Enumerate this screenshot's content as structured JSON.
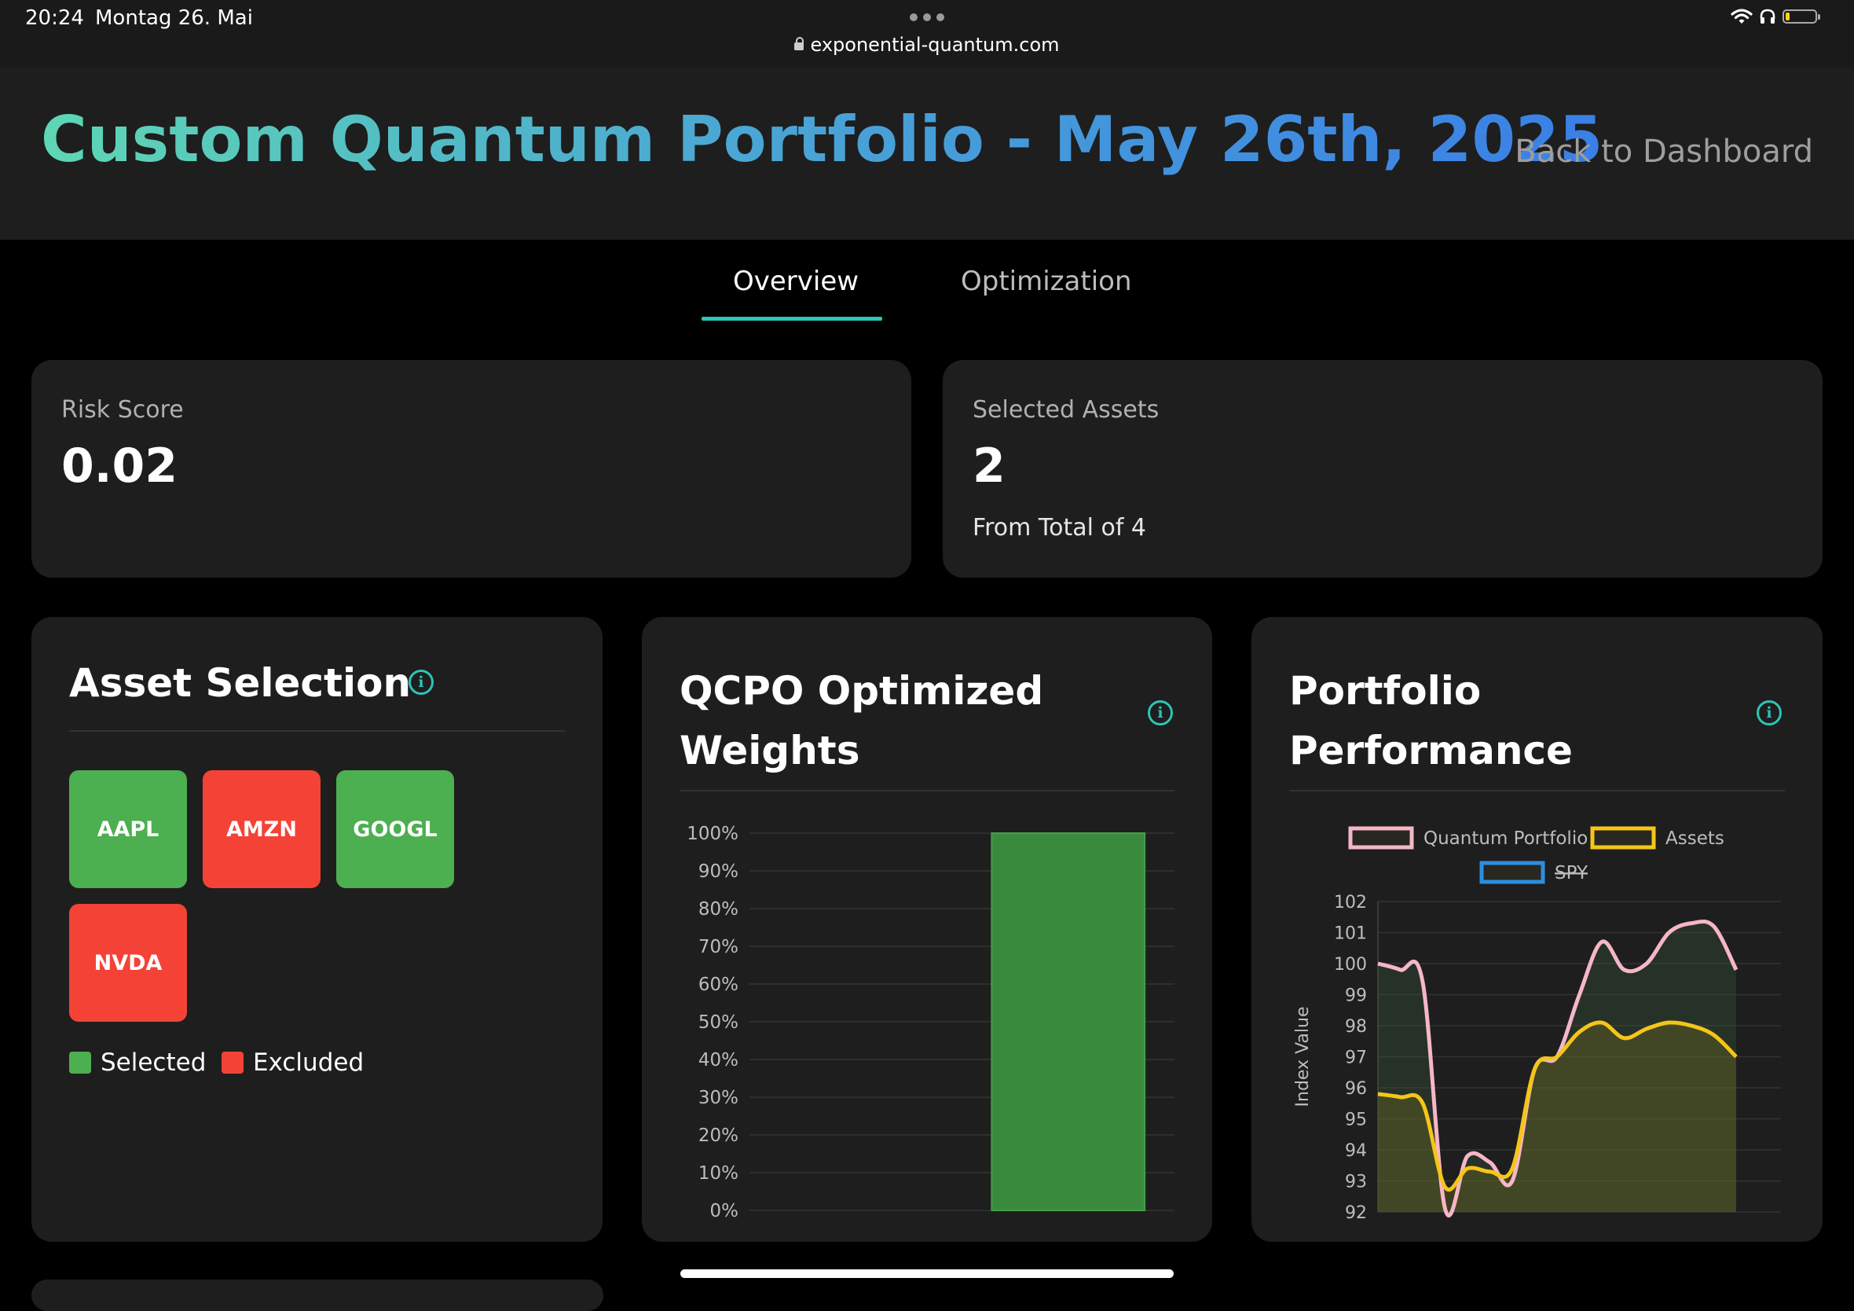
{
  "status_bar": {
    "time": "20:24",
    "date": "Montag 26. Mai",
    "url": "exponential-quantum.com"
  },
  "header": {
    "title": "Custom Quantum Portfolio - May 26th, 2025",
    "back_link": "Back to Dashboard"
  },
  "tabs": [
    {
      "label": "Overview",
      "active": true
    },
    {
      "label": "Optimization",
      "active": false
    }
  ],
  "stats": {
    "risk": {
      "label": "Risk Score",
      "value": "0.02"
    },
    "assets": {
      "label": "Selected Assets",
      "value": "2",
      "sub": "From Total of 4"
    }
  },
  "asset_selection": {
    "title": "Asset Selection",
    "tiles": [
      {
        "ticker": "AAPL",
        "status": "selected"
      },
      {
        "ticker": "AMZN",
        "status": "excluded"
      },
      {
        "ticker": "GOOGL",
        "status": "selected"
      },
      {
        "ticker": "NVDA",
        "status": "excluded"
      }
    ],
    "legend": {
      "selected": "Selected",
      "excluded": "Excluded"
    },
    "colors": {
      "selected": "#4caf50",
      "excluded": "#f44336"
    }
  },
  "weights_panel": {
    "title_line1": "QCPO Optimized",
    "title_line2": "Weights"
  },
  "performance_panel": {
    "title_line1": "Portfolio",
    "title_line2": "Performance"
  },
  "chart_data": [
    {
      "type": "bar",
      "yticks": [
        "0%",
        "10%",
        "20%",
        "30%",
        "40%",
        "50%",
        "60%",
        "70%",
        "80%",
        "90%",
        "100%"
      ],
      "ylim": [
        0,
        100
      ],
      "slots": 2,
      "bars": [
        {
          "slot": 1,
          "value": 100
        }
      ],
      "bar_color": "#3a8a3e",
      "grid": true
    },
    {
      "type": "area",
      "ylabel": "Index Value",
      "ylim": [
        92,
        102
      ],
      "yticks": [
        "92",
        "93",
        "94",
        "95",
        "96",
        "97",
        "98",
        "99",
        "100",
        "101",
        "102"
      ],
      "legend_position": "top",
      "x_count": 19,
      "series": [
        {
          "name": "Quantum Portfolio",
          "color": "#f6b6c8",
          "fill": "rgba(60,100,70,0.28)",
          "values": [
            100.0,
            99.8,
            99.4,
            92.1,
            93.8,
            93.6,
            93.0,
            96.6,
            97.0,
            99.0,
            100.7,
            99.8,
            100.0,
            101.0,
            101.3,
            101.2,
            99.8,
            null,
            null
          ],
          "hidden": false
        },
        {
          "name": "Assets",
          "color": "#f5c518",
          "fill": "rgba(100,100,30,0.45)",
          "values": [
            95.8,
            95.7,
            95.5,
            92.8,
            93.4,
            93.3,
            93.4,
            96.6,
            97.0,
            97.8,
            98.1,
            97.6,
            97.9,
            98.1,
            98.0,
            97.7,
            97.0,
            null,
            null
          ],
          "hidden": false
        },
        {
          "name": "SPY",
          "color": "#2d8ee0",
          "values": [],
          "hidden": true
        }
      ]
    }
  ]
}
